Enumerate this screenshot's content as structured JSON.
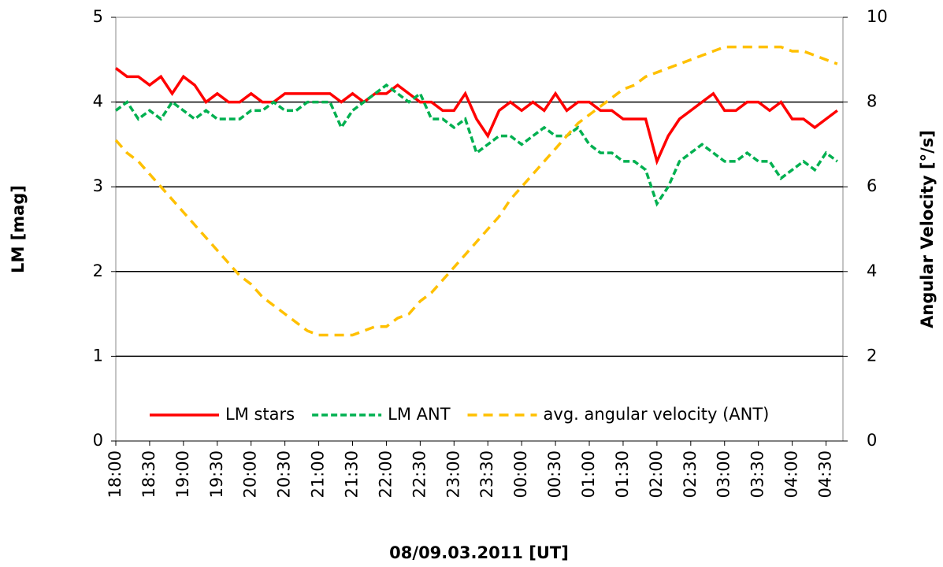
{
  "chart_data": {
    "type": "line",
    "x_label": "08/09.03.2011 [UT]",
    "y_label": "LM [mag]",
    "y2_label": "Angular Velocity [°/s]",
    "x": [
      "18:00",
      "18:10",
      "18:20",
      "18:30",
      "18:40",
      "18:50",
      "19:00",
      "19:10",
      "19:20",
      "19:30",
      "19:40",
      "19:50",
      "20:00",
      "20:10",
      "20:20",
      "20:30",
      "20:40",
      "20:50",
      "21:00",
      "21:10",
      "21:20",
      "21:30",
      "21:40",
      "21:50",
      "22:00",
      "22:10",
      "22:20",
      "22:30",
      "22:40",
      "22:50",
      "23:00",
      "23:10",
      "23:20",
      "23:30",
      "23:40",
      "23:50",
      "00:00",
      "00:10",
      "00:20",
      "00:30",
      "00:40",
      "00:50",
      "01:00",
      "01:10",
      "01:20",
      "01:30",
      "01:40",
      "01:50",
      "02:00",
      "02:10",
      "02:20",
      "02:30",
      "02:40",
      "02:50",
      "03:00",
      "03:10",
      "03:20",
      "03:30",
      "03:40",
      "03:50",
      "04:00",
      "04:10",
      "04:20",
      "04:30",
      "04:40"
    ],
    "series": [
      {
        "name": "LM stars",
        "color": "#ff0000",
        "dash": "none",
        "values": [
          4.4,
          4.3,
          4.3,
          4.2,
          4.3,
          4.1,
          4.3,
          4.2,
          4.0,
          4.1,
          4.0,
          4.0,
          4.1,
          4.0,
          4.0,
          4.1,
          4.1,
          4.1,
          4.1,
          4.1,
          4.0,
          4.1,
          4.0,
          4.1,
          4.1,
          4.2,
          4.1,
          4.0,
          4.0,
          3.9,
          3.9,
          4.1,
          3.8,
          3.6,
          3.9,
          4.0,
          3.9,
          4.0,
          3.9,
          4.1,
          3.9,
          4.0,
          4.0,
          3.9,
          3.9,
          3.8,
          3.8,
          3.8,
          3.3,
          3.6,
          3.8,
          3.9,
          4.0,
          4.1,
          3.9,
          3.9,
          4.0,
          4.0,
          3.9,
          4.0,
          3.8,
          3.8,
          3.7,
          3.8,
          3.9
        ]
      },
      {
        "name": "LM ANT",
        "color": "#00b050",
        "dash": "8,4",
        "values": [
          3.9,
          4.0,
          3.8,
          3.9,
          3.8,
          4.0,
          3.9,
          3.8,
          3.9,
          3.8,
          3.8,
          3.8,
          3.9,
          3.9,
          4.0,
          3.9,
          3.9,
          4.0,
          4.0,
          4.0,
          3.7,
          3.9,
          4.0,
          4.1,
          4.2,
          4.1,
          4.0,
          4.1,
          3.8,
          3.8,
          3.7,
          3.8,
          3.4,
          3.5,
          3.6,
          3.6,
          3.5,
          3.6,
          3.7,
          3.6,
          3.6,
          3.7,
          3.5,
          3.4,
          3.4,
          3.3,
          3.3,
          3.2,
          2.8,
          3.0,
          3.3,
          3.4,
          3.5,
          3.4,
          3.3,
          3.3,
          3.4,
          3.3,
          3.3,
          3.1,
          3.2,
          3.3,
          3.2,
          3.4,
          3.3
        ]
      },
      {
        "name": "avg. angular velocity (ANT)",
        "color": "#ffc000",
        "dash": "12,8",
        "axis": "y2",
        "values": [
          7.1,
          6.8,
          6.6,
          6.3,
          6.0,
          5.7,
          5.4,
          5.1,
          4.8,
          4.5,
          4.2,
          3.9,
          3.7,
          3.4,
          3.2,
          3.0,
          2.8,
          2.6,
          2.5,
          2.5,
          2.5,
          2.5,
          2.6,
          2.7,
          2.7,
          2.9,
          3.0,
          3.3,
          3.5,
          3.8,
          4.1,
          4.4,
          4.7,
          5.0,
          5.3,
          5.7,
          6.0,
          6.3,
          6.6,
          6.9,
          7.2,
          7.5,
          7.7,
          7.9,
          8.1,
          8.3,
          8.4,
          8.6,
          8.7,
          8.8,
          8.9,
          9.0,
          9.1,
          9.2,
          9.3,
          9.3,
          9.3,
          9.3,
          9.3,
          9.3,
          9.2,
          9.2,
          9.1,
          9.0,
          8.9
        ]
      }
    ],
    "xlim": [
      "18:00",
      "04:45"
    ],
    "xticks": [
      "18:00",
      "18:30",
      "19:00",
      "19:30",
      "20:00",
      "20:30",
      "21:00",
      "21:30",
      "22:00",
      "22:30",
      "23:00",
      "23:30",
      "00:00",
      "00:30",
      "01:00",
      "01:30",
      "02:00",
      "02:30",
      "03:00",
      "03:30",
      "04:00",
      "04:30"
    ],
    "ylim": [
      0,
      5
    ],
    "yticks": [
      0,
      1,
      2,
      3,
      4,
      5
    ],
    "y2lim": [
      0,
      10
    ],
    "y2ticks": [
      0,
      2,
      4,
      6,
      8,
      10
    ],
    "grid": true,
    "legend": "bottom"
  }
}
